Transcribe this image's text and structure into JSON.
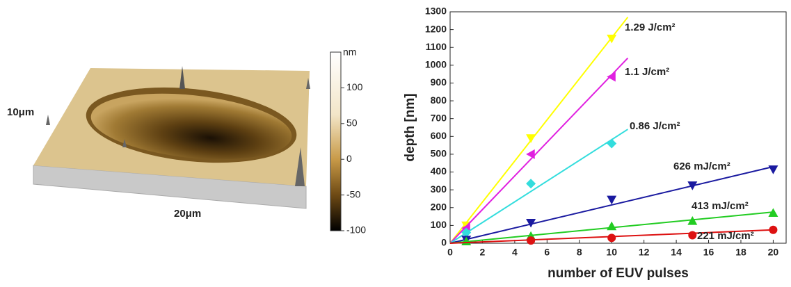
{
  "afm_image": {
    "y_label": "10μm",
    "x_label": "20μm",
    "colorbar": {
      "label": "nm",
      "lim": [
        -100,
        150
      ],
      "ticks": [
        100,
        50,
        0,
        -50,
        -100
      ]
    }
  },
  "chart_data": {
    "type": "scatter",
    "x_label": "number of EUV pulses",
    "y_label": "depth [nm]",
    "xlim": [
      0,
      20.8
    ],
    "xticks": [
      0,
      2,
      4,
      6,
      8,
      10,
      12,
      14,
      16,
      18,
      20
    ],
    "ylim": [
      0,
      1300
    ],
    "yticks": [
      0,
      100,
      200,
      300,
      400,
      500,
      600,
      700,
      800,
      900,
      1000,
      1100,
      1200,
      1300
    ],
    "series": [
      {
        "name": "1.29 J/cm²",
        "color": "#ffff00",
        "marker": "triangle-down",
        "x": [
          1,
          5,
          10
        ],
        "values": [
          100,
          590,
          1150
        ],
        "fit_x": [
          0,
          11
        ],
        "fit_values": [
          0,
          1270
        ]
      },
      {
        "name": "1.1 J/cm²",
        "color": "#e020e0",
        "marker": "triangle-left",
        "x": [
          1,
          5,
          10
        ],
        "values": [
          85,
          500,
          935
        ],
        "fit_x": [
          0,
          11
        ],
        "fit_values": [
          0,
          1040
        ]
      },
      {
        "name": "0.86 J/cm²",
        "color": "#33dddd",
        "marker": "diamond",
        "x": [
          1,
          5,
          10
        ],
        "values": [
          60,
          335,
          560
        ],
        "fit_x": [
          0,
          11
        ],
        "fit_values": [
          0,
          640
        ]
      },
      {
        "name": "626 mJ/cm²",
        "color": "#1a1aa0",
        "marker": "triangle-down",
        "x": [
          1,
          5,
          10,
          15,
          20
        ],
        "values": [
          20,
          115,
          245,
          325,
          415
        ],
        "fit_x": [
          0,
          20
        ],
        "fit_values": [
          0,
          430
        ]
      },
      {
        "name": "413 mJ/cm²",
        "color": "#22cc22",
        "marker": "triangle-up",
        "x": [
          1,
          5,
          10,
          15,
          20
        ],
        "values": [
          10,
          40,
          95,
          125,
          170
        ],
        "fit_x": [
          0,
          20
        ],
        "fit_values": [
          0,
          175
        ]
      },
      {
        "name": "221 mJ/cm²",
        "color": "#dd1111",
        "marker": "circle",
        "x": [
          5,
          10,
          15,
          20
        ],
        "values": [
          15,
          30,
          45,
          75
        ],
        "fit_x": [
          0,
          20
        ],
        "fit_values": [
          0,
          75
        ]
      }
    ]
  }
}
